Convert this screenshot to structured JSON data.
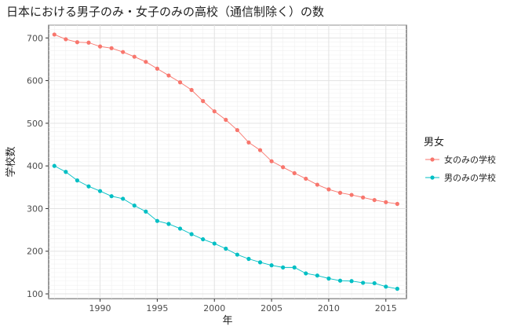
{
  "chart_data": {
    "type": "line",
    "title": "日本における男子のみ・女子のみの高校（通信制除く）の数",
    "xlabel": "年",
    "ylabel": "学校数",
    "xlim": [
      1985.5,
      2016.8
    ],
    "ylim": [
      89,
      730
    ],
    "xticks": [
      1990,
      1995,
      2000,
      2005,
      2010,
      2015
    ],
    "yticks": [
      100,
      200,
      300,
      400,
      500,
      600,
      700
    ],
    "grid": true,
    "legend": {
      "title": "男女",
      "position": "right"
    },
    "x": [
      1986,
      1987,
      1988,
      1989,
      1990,
      1991,
      1992,
      1993,
      1994,
      1995,
      1996,
      1997,
      1998,
      1999,
      2000,
      2001,
      2002,
      2003,
      2004,
      2005,
      2006,
      2007,
      2008,
      2009,
      2010,
      2011,
      2012,
      2013,
      2014,
      2015,
      2016
    ],
    "series": [
      {
        "name": "女のみの学校",
        "color": "#F8766D",
        "values": [
          708,
          697,
          690,
          689,
          680,
          676,
          667,
          656,
          644,
          628,
          612,
          596,
          578,
          552,
          528,
          508,
          484,
          455,
          437,
          411,
          397,
          383,
          370,
          356,
          345,
          337,
          332,
          326,
          320,
          315,
          311
        ]
      },
      {
        "name": "男のみの学校",
        "color": "#00BFC4",
        "values": [
          400,
          386,
          366,
          352,
          341,
          329,
          323,
          307,
          293,
          271,
          264,
          253,
          240,
          228,
          218,
          206,
          192,
          182,
          174,
          167,
          162,
          162,
          148,
          143,
          136,
          131,
          130,
          126,
          125,
          117,
          112
        ]
      }
    ]
  }
}
